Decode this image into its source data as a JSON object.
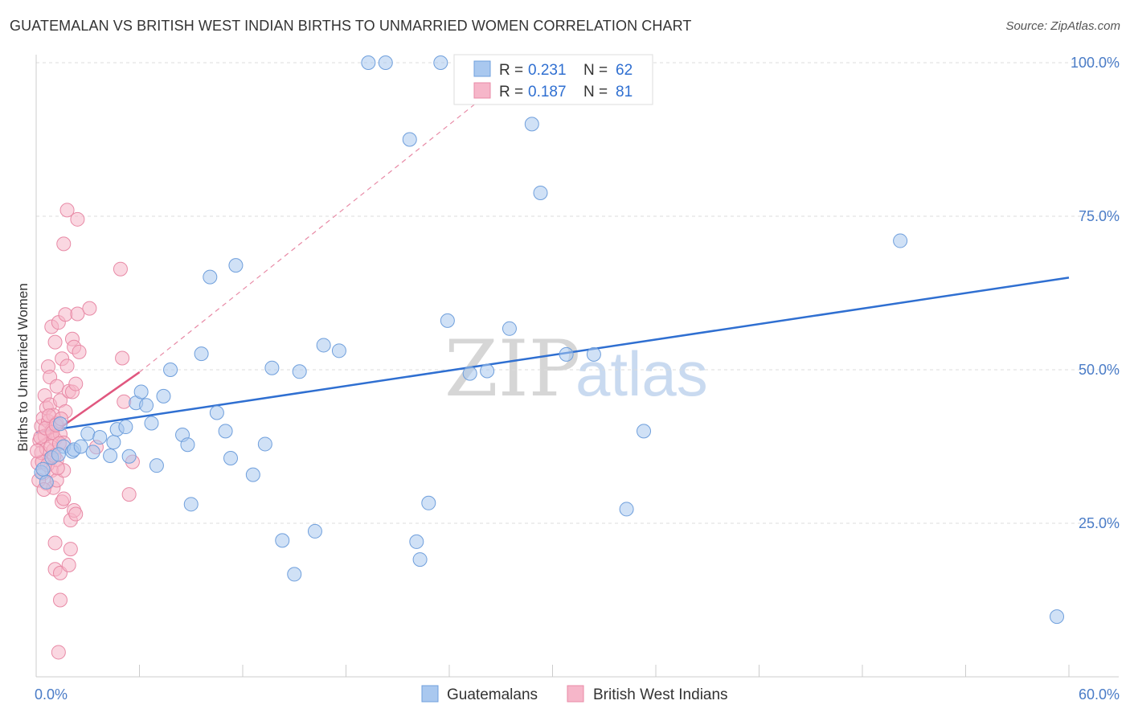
{
  "header": {
    "title": "GUATEMALAN VS BRITISH WEST INDIAN BIRTHS TO UNMARRIED WOMEN CORRELATION CHART",
    "source": "Source: ZipAtlas.com"
  },
  "watermark": {
    "zip": "ZIP",
    "atlas": "atlas"
  },
  "legend": {
    "r_label": "R =",
    "n_label": "N =",
    "guatemalans": {
      "r": "0.231",
      "n": "62"
    },
    "bwi": {
      "r": "0.187",
      "n": "81"
    }
  },
  "colors": {
    "blue_fill": "#a9c8ef",
    "blue_stroke": "#6f9fdc",
    "blue_line": "#2f6fd1",
    "pink_fill": "#f6b6c9",
    "pink_stroke": "#e88aa6",
    "pink_line": "#e0577f"
  },
  "chart_data": {
    "type": "scatter",
    "title": "GUATEMALAN VS BRITISH WEST INDIAN BIRTHS TO UNMARRIED WOMEN CORRELATION CHART",
    "xlabel": "",
    "ylabel": "Births to Unmarried Women",
    "xlim": [
      0,
      60
    ],
    "ylim": [
      0,
      105
    ],
    "x_tick_labels": [
      "0.0%",
      "60.0%"
    ],
    "y_tick_values": [
      25,
      50,
      75,
      100
    ],
    "y_tick_labels": [
      "25.0%",
      "50.0%",
      "75.0%",
      "100.0%"
    ],
    "grid": true,
    "legend_position": "top-center",
    "series": [
      {
        "name": "Guatemalans",
        "color": "#a9c8ef",
        "trend": {
          "x": [
            0,
            60
          ],
          "y": [
            39.8,
            65.0
          ],
          "style": "solid"
        },
        "points": [
          [
            0.3,
            33.3
          ],
          [
            0.6,
            31.7
          ],
          [
            0.9,
            35.7
          ],
          [
            1.4,
            41.2
          ],
          [
            1.6,
            37.5
          ],
          [
            2.1,
            36.7
          ],
          [
            2.2,
            37.0
          ],
          [
            2.6,
            37.5
          ],
          [
            3.0,
            39.6
          ],
          [
            3.3,
            36.6
          ],
          [
            3.7,
            39.0
          ],
          [
            4.3,
            36.0
          ],
          [
            4.5,
            38.2
          ],
          [
            4.7,
            40.3
          ],
          [
            5.2,
            40.7
          ],
          [
            5.4,
            35.9
          ],
          [
            5.8,
            44.6
          ],
          [
            6.1,
            46.4
          ],
          [
            6.4,
            44.2
          ],
          [
            6.7,
            41.3
          ],
          [
            7.0,
            34.4
          ],
          [
            7.4,
            45.7
          ],
          [
            7.8,
            50.0
          ],
          [
            8.5,
            39.4
          ],
          [
            8.8,
            37.8
          ],
          [
            9.0,
            28.1
          ],
          [
            9.6,
            52.6
          ],
          [
            10.1,
            65.1
          ],
          [
            10.5,
            43.0
          ],
          [
            11.0,
            40.0
          ],
          [
            11.3,
            35.6
          ],
          [
            11.6,
            67.0
          ],
          [
            12.6,
            32.9
          ],
          [
            13.3,
            37.9
          ],
          [
            13.7,
            50.3
          ],
          [
            14.3,
            22.2
          ],
          [
            15.0,
            16.7
          ],
          [
            15.3,
            49.7
          ],
          [
            16.2,
            23.7
          ],
          [
            16.7,
            54.0
          ],
          [
            17.6,
            53.1
          ],
          [
            19.3,
            100.0
          ],
          [
            20.3,
            100.0
          ],
          [
            21.7,
            87.5
          ],
          [
            22.1,
            22.0
          ],
          [
            22.3,
            19.1
          ],
          [
            22.8,
            28.3
          ],
          [
            23.5,
            100.0
          ],
          [
            23.9,
            58.0
          ],
          [
            25.2,
            49.4
          ],
          [
            26.2,
            49.8
          ],
          [
            27.5,
            56.7
          ],
          [
            28.8,
            90.0
          ],
          [
            29.3,
            78.8
          ],
          [
            30.8,
            52.5
          ],
          [
            32.4,
            52.5
          ],
          [
            34.3,
            27.3
          ],
          [
            35.3,
            40.0
          ],
          [
            50.2,
            71.0
          ],
          [
            59.3,
            9.8
          ],
          [
            0.4,
            33.8
          ],
          [
            1.3,
            36.2
          ]
        ]
      },
      {
        "name": "British West Indians",
        "color": "#f6b6c9",
        "trend": {
          "x": [
            0,
            6.0
          ],
          "y": [
            37.8,
            49.6
          ],
          "style": "solid",
          "extended_to": [
            28.5,
            100.0
          ]
        },
        "points": [
          [
            0.1,
            34.8
          ],
          [
            0.2,
            38.5
          ],
          [
            0.3,
            40.8
          ],
          [
            0.3,
            36.5
          ],
          [
            0.4,
            42.1
          ],
          [
            0.4,
            33.1
          ],
          [
            0.5,
            45.8
          ],
          [
            0.5,
            39.2
          ],
          [
            0.6,
            43.8
          ],
          [
            0.6,
            37.1
          ],
          [
            0.6,
            31.5
          ],
          [
            0.7,
            50.5
          ],
          [
            0.7,
            41.6
          ],
          [
            0.8,
            44.3
          ],
          [
            0.8,
            35.5
          ],
          [
            0.8,
            48.8
          ],
          [
            0.9,
            57.0
          ],
          [
            0.9,
            40.1
          ],
          [
            0.9,
            33.6
          ],
          [
            1.0,
            42.6
          ],
          [
            1.0,
            36.9
          ],
          [
            1.0,
            30.8
          ],
          [
            1.1,
            54.5
          ],
          [
            1.1,
            38.7
          ],
          [
            1.1,
            21.8
          ],
          [
            1.1,
            17.5
          ],
          [
            1.2,
            47.3
          ],
          [
            1.2,
            41.3
          ],
          [
            1.2,
            35.3
          ],
          [
            1.2,
            32.0
          ],
          [
            1.3,
            57.7
          ],
          [
            1.3,
            4.0
          ],
          [
            1.4,
            45.0
          ],
          [
            1.4,
            39.5
          ],
          [
            1.4,
            16.9
          ],
          [
            1.4,
            12.5
          ],
          [
            1.5,
            51.8
          ],
          [
            1.5,
            28.5
          ],
          [
            1.6,
            29.0
          ],
          [
            1.6,
            38.1
          ],
          [
            1.6,
            33.6
          ],
          [
            1.6,
            70.5
          ],
          [
            1.7,
            59.0
          ],
          [
            1.7,
            43.2
          ],
          [
            1.8,
            76.0
          ],
          [
            1.8,
            50.6
          ],
          [
            1.9,
            46.5
          ],
          [
            1.9,
            18.2
          ],
          [
            2.0,
            25.5
          ],
          [
            2.0,
            20.8
          ],
          [
            2.1,
            46.4
          ],
          [
            2.1,
            55.0
          ],
          [
            2.2,
            53.7
          ],
          [
            2.2,
            27.1
          ],
          [
            2.3,
            26.5
          ],
          [
            2.3,
            47.7
          ],
          [
            2.4,
            59.1
          ],
          [
            2.4,
            74.5
          ],
          [
            2.5,
            52.9
          ],
          [
            3.1,
            60.0
          ],
          [
            3.5,
            37.4
          ],
          [
            4.9,
            66.4
          ],
          [
            5.0,
            51.9
          ],
          [
            5.1,
            44.8
          ],
          [
            5.4,
            29.7
          ],
          [
            5.6,
            35.0
          ],
          [
            0.15,
            32.0
          ],
          [
            0.25,
            39.0
          ],
          [
            0.35,
            35.0
          ],
          [
            0.45,
            30.5
          ],
          [
            0.55,
            40.5
          ],
          [
            0.65,
            34.5
          ],
          [
            0.75,
            42.5
          ],
          [
            0.85,
            37.5
          ],
          [
            0.95,
            39.8
          ],
          [
            1.05,
            36.0
          ],
          [
            1.15,
            41.0
          ],
          [
            1.25,
            34.0
          ],
          [
            1.35,
            38.0
          ],
          [
            1.45,
            42.0
          ],
          [
            0.05,
            36.8
          ]
        ]
      }
    ]
  },
  "bottom_legend": {
    "guatemalans_label": "Guatemalans",
    "bwi_label": "British West Indians"
  }
}
